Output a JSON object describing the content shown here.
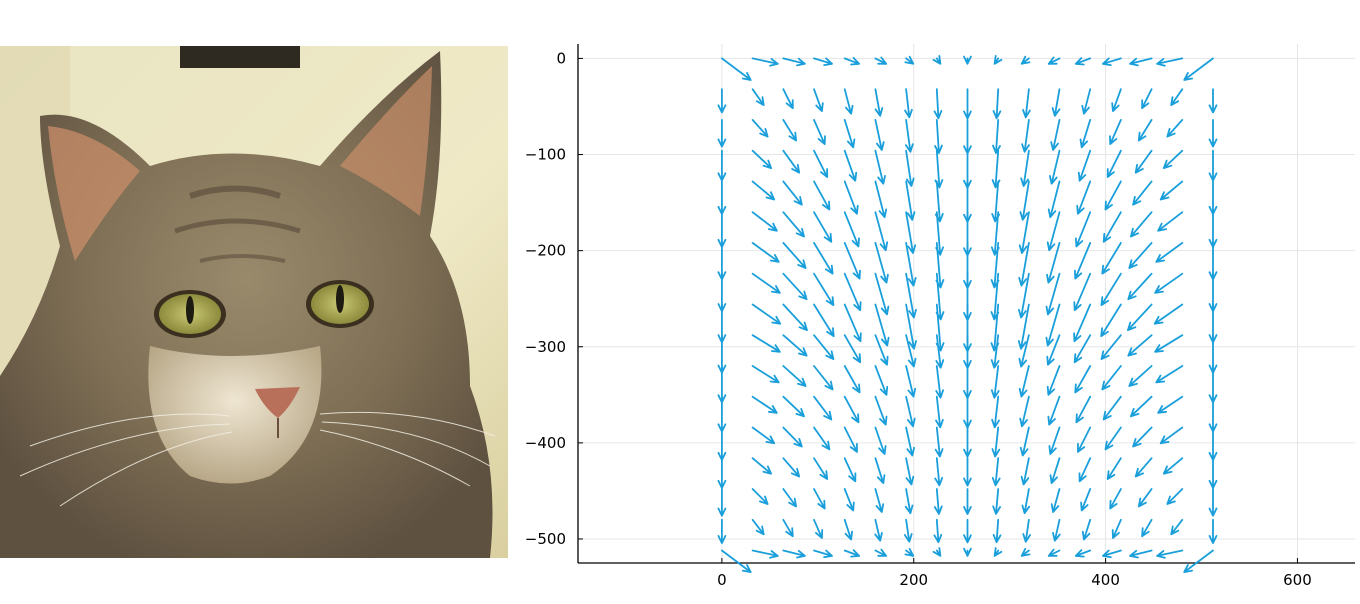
{
  "chart_data": {
    "type": "quiver",
    "xlim": [
      -150,
      660
    ],
    "ylim": [
      -525,
      15
    ],
    "x_ticks": [
      {
        "value": 0,
        "label": "0"
      },
      {
        "value": 200,
        "label": "200"
      },
      {
        "value": 400,
        "label": "400"
      },
      {
        "value": 600,
        "label": "600"
      }
    ],
    "y_ticks": [
      {
        "value": 0,
        "label": "0"
      },
      {
        "value": -100,
        "label": "−100"
      },
      {
        "value": -200,
        "label": "−200"
      },
      {
        "value": -300,
        "label": "−300"
      },
      {
        "value": -400,
        "label": "−400"
      },
      {
        "value": -500,
        "label": "−500"
      }
    ],
    "grid": true,
    "arrow_color": "#1a9fdb",
    "grid_points": {
      "x_start": 0,
      "x_step": 32,
      "x_count": 17,
      "y_start": 0,
      "y_step": -32,
      "y_count": 17
    },
    "field_scale": 36,
    "vector_field": "flow converging toward the image center: rightward along the top-left and bottom-left edges, leftward along the top-right and bottom-right edges, downward along the left and right edges and through the middle, with strongest diagonal components in the upper-middle region"
  },
  "image": {
    "subject": "tabby-cat-photo"
  }
}
